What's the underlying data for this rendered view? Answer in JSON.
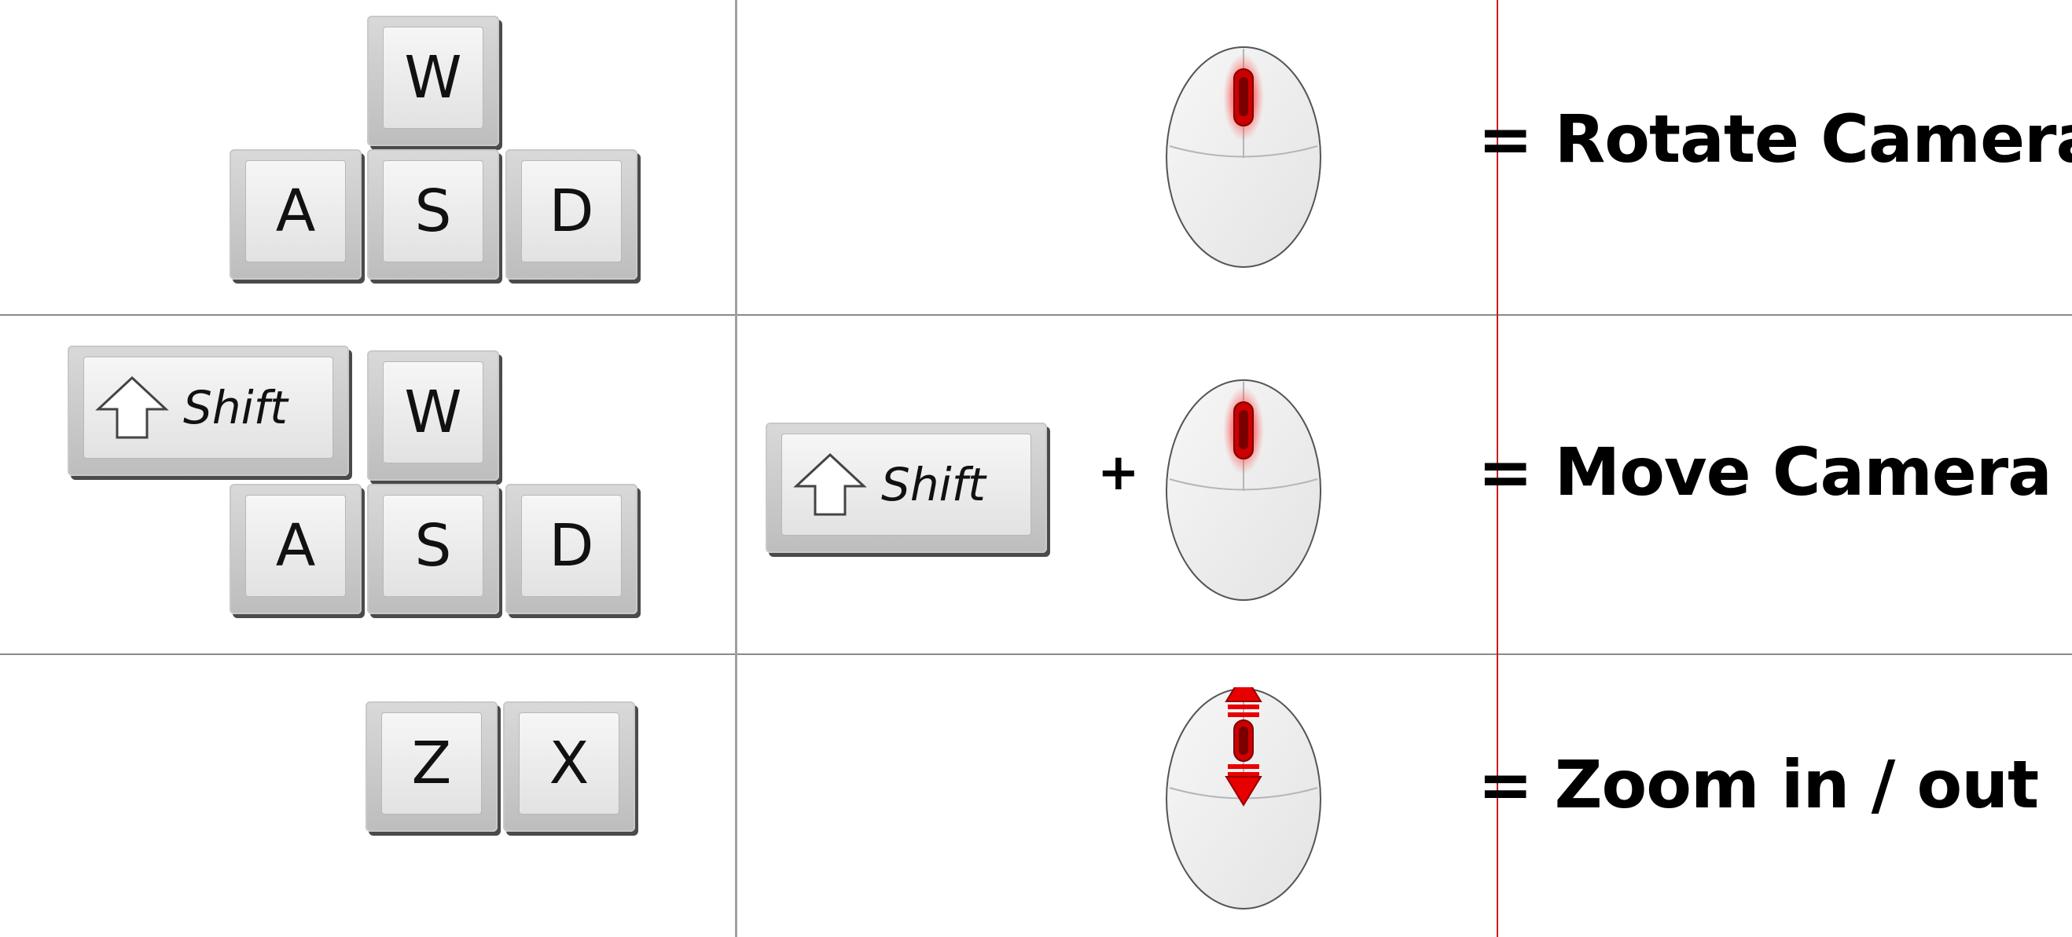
{
  "rows": [
    {
      "keys": [
        "W",
        "A",
        "S",
        "D"
      ],
      "modifier": "",
      "mouse_action": "middle-button-drag",
      "result": "= Rotate Camera"
    },
    {
      "keys": [
        "Shift",
        "W",
        "A",
        "S",
        "D"
      ],
      "modifier": "Shift",
      "plus": "+",
      "mouse_action": "middle-button-drag",
      "result": "= Move Camera"
    },
    {
      "keys": [
        "Z",
        "X"
      ],
      "modifier": "",
      "mouse_action": "scroll-wheel",
      "result": "= Zoom in / out"
    }
  ],
  "icons": {
    "mouse": "mouse-icon",
    "shift_arrow": "up-arrow-icon",
    "scroll": "scroll-arrows-icon"
  },
  "colors": {
    "accent": "#e60000",
    "divider": "#cc1b1b",
    "grid": "#8a8a8a"
  }
}
